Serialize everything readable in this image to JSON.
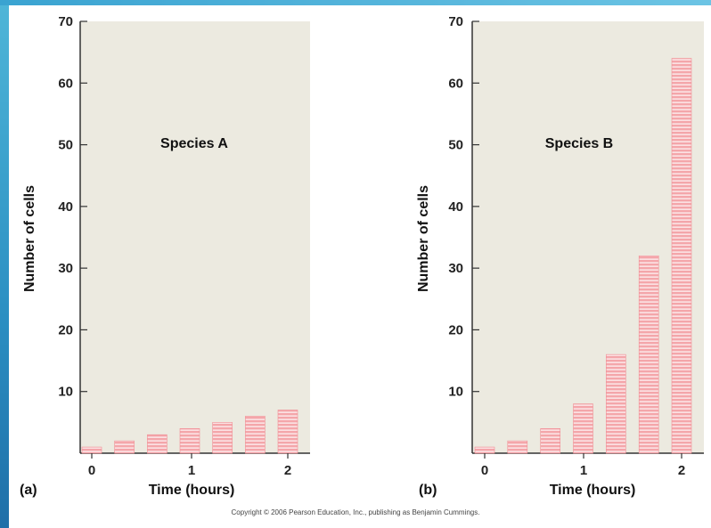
{
  "copyright": "Copyright © 2006 Pearson Education, Inc., publishing as Benjamin Cummings.",
  "colors": {
    "plot_background": "#eceae0",
    "bar_fill": "#f4a6aa",
    "bar_stripe": "#fbe0e2"
  },
  "chart_data": [
    {
      "type": "bar",
      "panel_letter": "(a)",
      "title": "Species A",
      "xlabel": "Time (hours)",
      "ylabel": "Number of cells",
      "ylim": [
        0,
        70
      ],
      "yticks": [
        10,
        20,
        30,
        40,
        50,
        60,
        70
      ],
      "xlim": [
        0,
        2
      ],
      "xticks": [
        0,
        1,
        2
      ],
      "x": [
        0,
        0.333,
        0.667,
        1,
        1.333,
        1.667,
        2
      ],
      "values": [
        1,
        2,
        3,
        4,
        5,
        6,
        7
      ]
    },
    {
      "type": "bar",
      "panel_letter": "(b)",
      "title": "Species B",
      "xlabel": "Time (hours)",
      "ylabel": "Number of cells",
      "ylim": [
        0,
        70
      ],
      "yticks": [
        10,
        20,
        30,
        40,
        50,
        60,
        70
      ],
      "xlim": [
        0,
        2
      ],
      "xticks": [
        0,
        1,
        2
      ],
      "x": [
        0,
        0.333,
        0.667,
        1,
        1.333,
        1.667,
        2
      ],
      "values": [
        1,
        2,
        4,
        8,
        16,
        32,
        64
      ]
    }
  ]
}
